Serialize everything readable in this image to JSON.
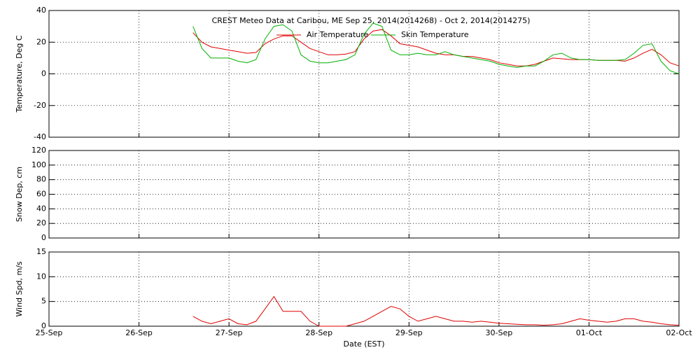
{
  "chart_data": [
    {
      "type": "line",
      "title": "CREST Meteo Data at Caribou, ME   Sep 25, 2014(2014268) - Oct  2, 2014(2014275)",
      "ylabel": "Temperature, Deg C",
      "x": [
        1.6,
        1.7,
        1.8,
        1.9,
        2.0,
        2.1,
        2.2,
        2.3,
        2.4,
        2.5,
        2.6,
        2.7,
        2.8,
        2.9,
        3.0,
        3.1,
        3.2,
        3.3,
        3.4,
        3.5,
        3.6,
        3.7,
        3.8,
        3.9,
        4.0,
        4.1,
        4.2,
        4.3,
        4.4,
        4.5,
        4.6,
        4.7,
        4.8,
        4.9,
        5.0,
        5.1,
        5.2,
        5.3,
        5.4,
        5.5,
        5.6,
        5.7,
        5.8,
        5.9,
        6.0,
        6.1,
        6.2,
        6.3,
        6.4,
        6.5,
        6.6,
        6.7,
        6.8,
        6.9,
        7.0
      ],
      "series": [
        {
          "name": "Air Temperature",
          "color": "#e00000",
          "values": [
            26,
            20,
            17,
            16,
            15,
            14,
            13,
            13.5,
            19,
            22,
            24,
            24,
            20,
            16,
            14,
            12,
            12,
            12.5,
            14,
            22,
            27,
            28,
            24,
            19,
            18,
            17,
            15,
            13,
            12,
            12,
            11,
            11,
            10,
            9,
            7,
            6,
            5,
            5,
            6,
            8,
            10,
            9.5,
            9,
            9,
            9,
            8.5,
            8.5,
            8.5,
            8,
            10,
            13,
            15.5,
            12,
            7,
            5
          ]
        },
        {
          "name": "Skin Temperature",
          "color": "#00b000",
          "values": [
            30,
            16,
            10,
            10,
            10,
            8,
            7,
            9,
            22,
            30,
            31,
            27,
            12,
            8,
            7,
            7,
            8,
            9,
            12,
            25,
            32,
            30,
            15,
            12,
            12,
            13,
            12,
            12,
            14,
            12,
            11,
            10,
            9,
            8,
            6,
            5,
            4,
            5,
            5,
            8,
            12,
            13,
            10,
            9,
            9,
            8.5,
            8.5,
            8.5,
            9,
            13,
            18,
            19,
            8,
            2,
            0
          ]
        }
      ],
      "xlim": [
        0,
        7
      ],
      "ylim": [
        -40,
        40
      ],
      "yticks": [
        -40,
        -20,
        0,
        20,
        40
      ],
      "grid": true
    },
    {
      "type": "line",
      "ylabel": "Snow Dep, cm",
      "series": [],
      "xlim": [
        0,
        7
      ],
      "ylim": [
        0,
        120
      ],
      "yticks": [
        0,
        20,
        40,
        60,
        80,
        100,
        120
      ],
      "grid": true
    },
    {
      "type": "line",
      "ylabel": "Wind Spd, m/s",
      "xlabel": "Date (EST)",
      "x": [
        1.6,
        1.7,
        1.8,
        1.9,
        2.0,
        2.1,
        2.2,
        2.3,
        2.4,
        2.5,
        2.6,
        2.7,
        2.8,
        2.9,
        3.0,
        3.1,
        3.2,
        3.3,
        3.4,
        3.5,
        3.6,
        3.7,
        3.8,
        3.9,
        4.0,
        4.1,
        4.2,
        4.3,
        4.4,
        4.5,
        4.6,
        4.7,
        4.8,
        4.9,
        5.0,
        5.1,
        5.2,
        5.3,
        5.4,
        5.5,
        5.6,
        5.7,
        5.8,
        5.9,
        6.0,
        6.1,
        6.2,
        6.3,
        6.4,
        6.5,
        6.6,
        6.7,
        6.8,
        6.9,
        7.0
      ],
      "series": [
        {
          "color": "#e00000",
          "values": [
            2,
            1,
            0.5,
            1,
            1.5,
            0.5,
            0.3,
            1,
            3.5,
            6,
            3,
            3,
            3,
            1,
            0,
            0,
            0,
            0,
            0.5,
            1,
            2,
            3,
            4,
            3.5,
            2,
            1,
            1.5,
            2,
            1.5,
            1,
            1,
            0.8,
            1,
            0.8,
            0.6,
            0.5,
            0.4,
            0.3,
            0.3,
            0.2,
            0.3,
            0.5,
            1,
            1.5,
            1.2,
            1,
            0.8,
            1,
            1.5,
            1.5,
            1,
            0.8,
            0.5,
            0.3,
            0.2
          ]
        }
      ],
      "xlim": [
        0,
        7
      ],
      "xticks": [
        {
          "value": 0,
          "label": "25-Sep"
        },
        {
          "value": 1,
          "label": "26-Sep"
        },
        {
          "value": 2,
          "label": "27-Sep"
        },
        {
          "value": 3,
          "label": "28-Sep"
        },
        {
          "value": 4,
          "label": "29-Sep"
        },
        {
          "value": 5,
          "label": "30-Sep"
        },
        {
          "value": 6,
          "label": "01-Oct"
        },
        {
          "value": 7,
          "label": "02-Oct"
        }
      ],
      "ylim": [
        0,
        15
      ],
      "yticks": [
        0,
        5,
        10,
        15
      ],
      "grid": true
    }
  ]
}
